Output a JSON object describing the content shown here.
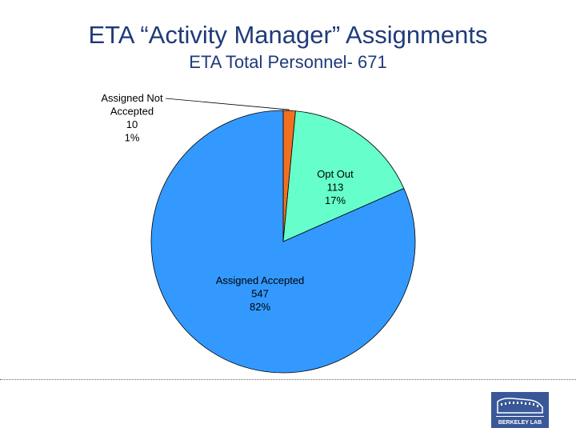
{
  "header": {
    "title": "ETA “Activity Manager” Assignments",
    "subtitle": "ETA Total Personnel- 671"
  },
  "chart_data": {
    "type": "pie",
    "title": "ETA Total Personnel- 671",
    "total": 671,
    "slices": [
      {
        "name": "Assigned Not Accepted",
        "label_lines": [
          "Assigned Not",
          "Accepted"
        ],
        "value": 10,
        "percent": "1%",
        "color": "#f07020"
      },
      {
        "name": "Opt Out",
        "label_lines": [
          "Opt Out"
        ],
        "value": 113,
        "percent": "17%",
        "color": "#66ffcc"
      },
      {
        "name": "Assigned Accepted",
        "label_lines": [
          "Assigned Accepted"
        ],
        "value": 547,
        "percent": "82%",
        "color": "#3399ff"
      }
    ],
    "legend": "none"
  },
  "logo": {
    "text": "BERKELEY LAB",
    "colors": {
      "background": "#3a5898",
      "foreground": "#ffffff"
    }
  }
}
